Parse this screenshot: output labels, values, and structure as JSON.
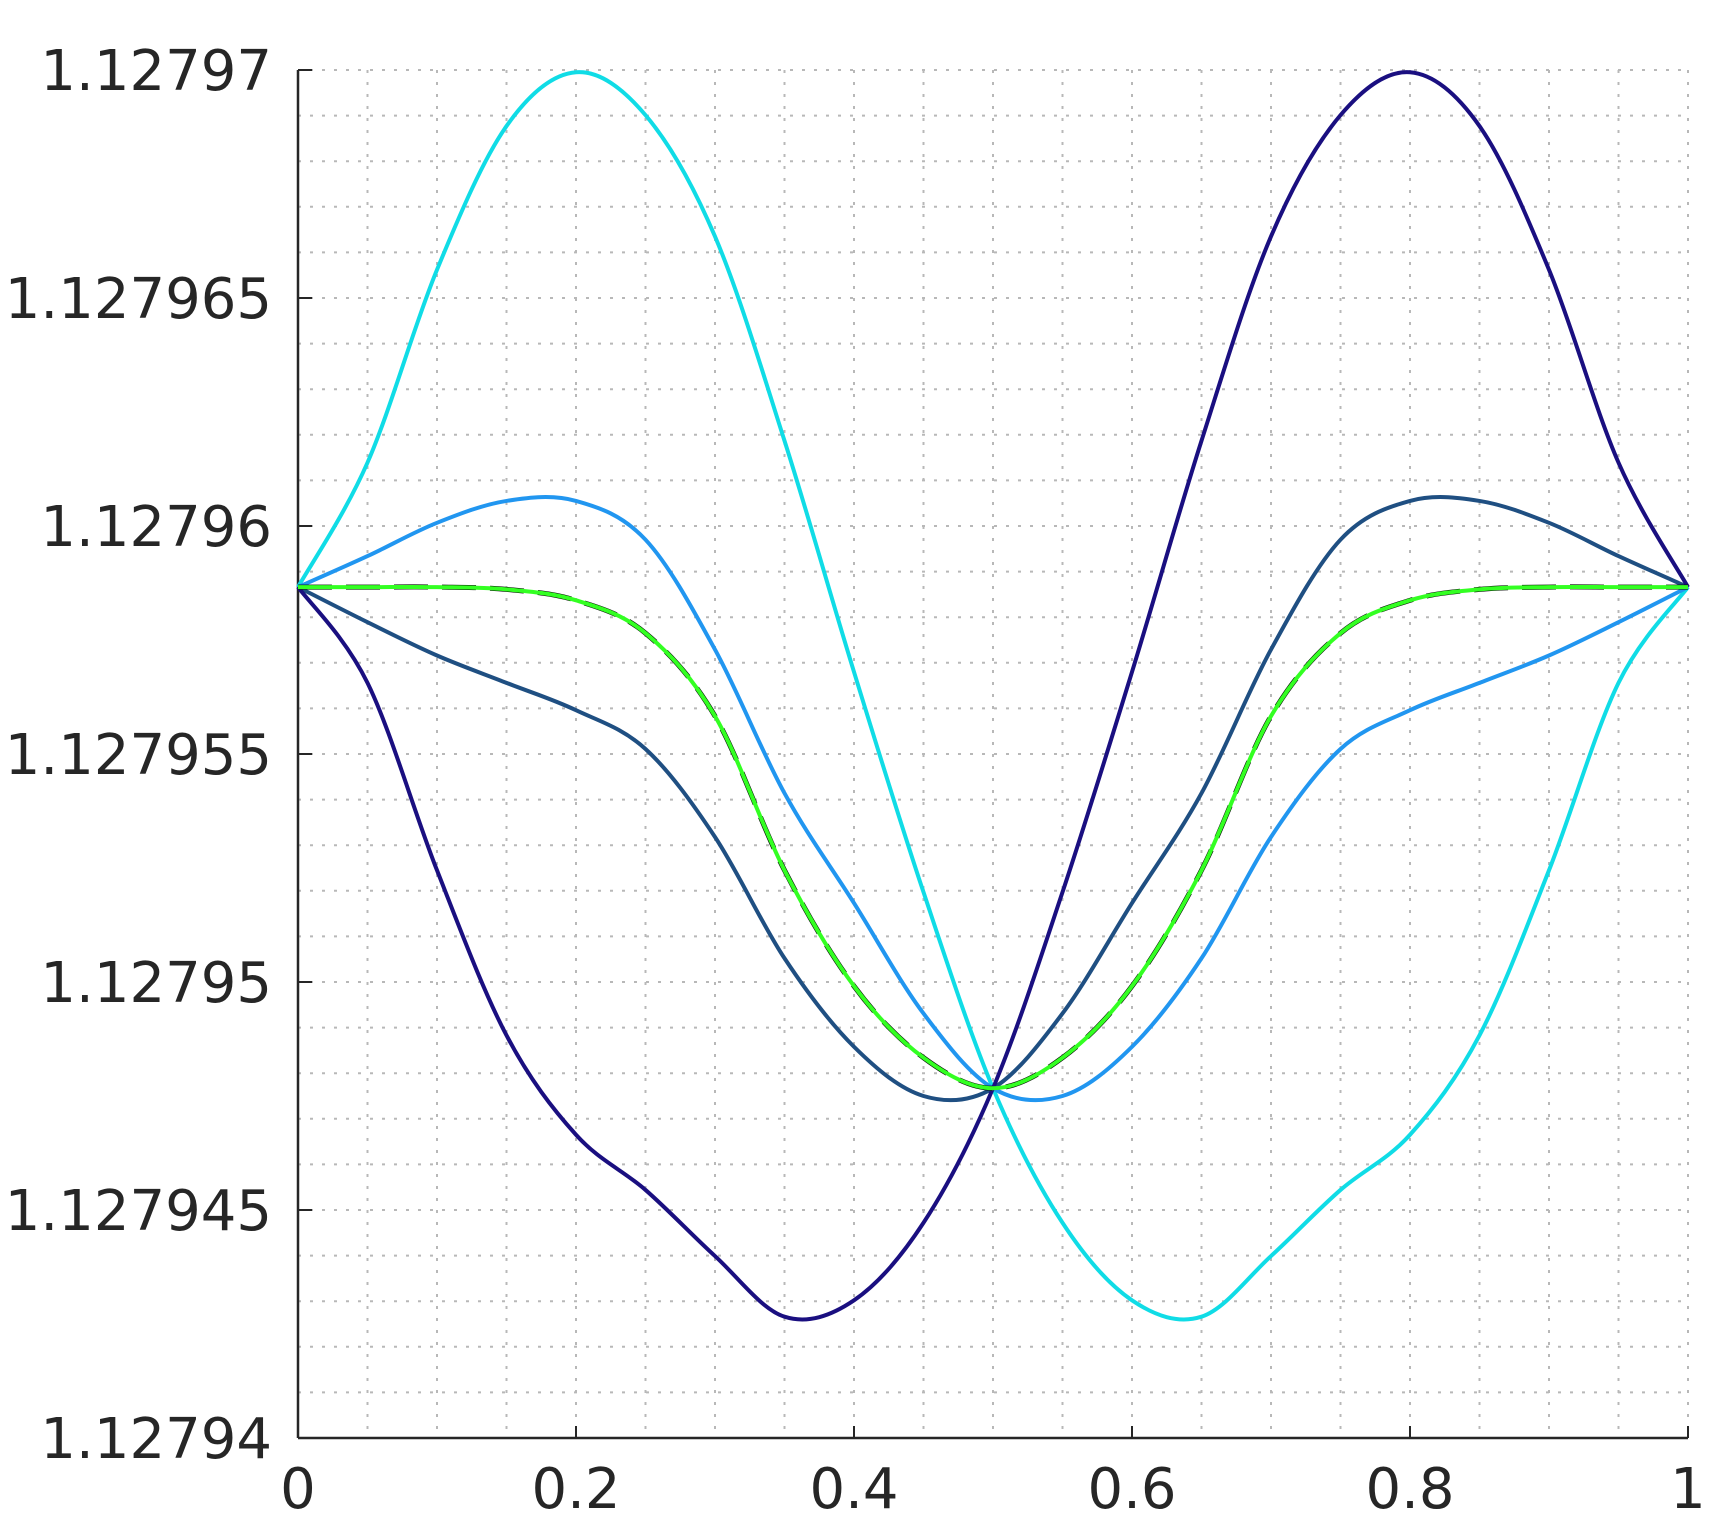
{
  "chart_data": {
    "type": "line",
    "x": [
      0,
      0.05,
      0.1,
      0.15,
      0.2,
      0.25,
      0.3,
      0.35,
      0.4,
      0.45,
      0.5,
      0.55,
      0.6,
      0.65,
      0.7,
      0.75,
      0.8,
      0.85,
      0.9,
      0.95,
      1
    ],
    "series": [
      {
        "color": "#10dce6",
        "values": [
          1.12795866,
          1.12796139,
          1.12796562,
          1.12796877,
          1.12796995,
          1.12796901,
          1.12796635,
          1.12796187,
          1.1279568,
          1.12795197,
          1.12794767,
          1.12794472,
          1.12794302,
          1.12794266,
          1.12794399,
          1.12794544,
          1.12794665,
          1.12794883,
          1.12795245,
          1.12795656,
          1.12795866
        ]
      },
      {
        "color": "#2196f0",
        "values": [
          1.12795866,
          1.12795934,
          1.12796007,
          1.12796055,
          1.12796055,
          1.1279597,
          1.12795729,
          1.12795414,
          1.12795173,
          1.12794931,
          1.12794767,
          1.1279475,
          1.12794858,
          1.12795052,
          1.12795318,
          1.12795511,
          1.12795596,
          1.12795656,
          1.12795716,
          1.12795789,
          1.12795866
        ]
      },
      {
        "color": "#1f4f82",
        "values": [
          1.12795866,
          1.12795789,
          1.12795716,
          1.12795656,
          1.12795596,
          1.12795511,
          1.12795318,
          1.12795052,
          1.12794858,
          1.1279475,
          1.12794767,
          1.12794931,
          1.12795173,
          1.12795414,
          1.12795729,
          1.1279597,
          1.12796055,
          1.12796055,
          1.12796007,
          1.12795934,
          1.12795866
        ]
      },
      {
        "color": "#1a0f80",
        "values": [
          1.12795866,
          1.12795656,
          1.12795245,
          1.12794883,
          1.12794665,
          1.12794544,
          1.12794399,
          1.12794266,
          1.12794302,
          1.12794472,
          1.12794767,
          1.12795197,
          1.1279568,
          1.12796187,
          1.12796635,
          1.12796901,
          1.12796995,
          1.12796877,
          1.12796562,
          1.12796139,
          1.12795866
        ]
      },
      {
        "color": "#000000",
        "dashed": true,
        "values": [
          1.12795866,
          1.12795866,
          1.12795866,
          1.12795861,
          1.12795837,
          1.12795765,
          1.12795583,
          1.12795245,
          1.12794991,
          1.12794834,
          1.12794767,
          1.12794834,
          1.12794991,
          1.12795245,
          1.12795583,
          1.12795765,
          1.12795837,
          1.12795861,
          1.12795866,
          1.12795866,
          1.12795866
        ]
      },
      {
        "color": "#33ff22",
        "values": [
          1.12795866,
          1.12795866,
          1.12795866,
          1.12795861,
          1.12795837,
          1.12795765,
          1.12795583,
          1.12795245,
          1.12794991,
          1.12794834,
          1.12794767,
          1.12794834,
          1.12794991,
          1.12795245,
          1.12795583,
          1.12795765,
          1.12795837,
          1.12795861,
          1.12795866,
          1.12795866,
          1.12795866
        ]
      }
    ],
    "xlim": [
      0,
      1
    ],
    "xticks": [
      0,
      0.2,
      0.4,
      0.6,
      0.8,
      1
    ],
    "minor_xticks": [
      0.05,
      0.1,
      0.15,
      0.25,
      0.3,
      0.35,
      0.45,
      0.5,
      0.55,
      0.65,
      0.7,
      0.75,
      0.85,
      0.9,
      0.95
    ],
    "ylim": [
      1.12794,
      1.12797
    ],
    "yticks": [
      1.12794,
      1.127945,
      1.12795,
      1.127955,
      1.12796,
      1.127965,
      1.12797
    ],
    "minor_yticks": [
      1.127941,
      1.127942,
      1.127943,
      1.127944,
      1.127946,
      1.127947,
      1.127948,
      1.127949,
      1.127951,
      1.127952,
      1.127953,
      1.127954,
      1.127956,
      1.127957,
      1.127958,
      1.127959,
      1.127961,
      1.127962,
      1.127963,
      1.127964,
      1.127966,
      1.127967,
      1.127968,
      1.127969
    ],
    "grid": true
  }
}
